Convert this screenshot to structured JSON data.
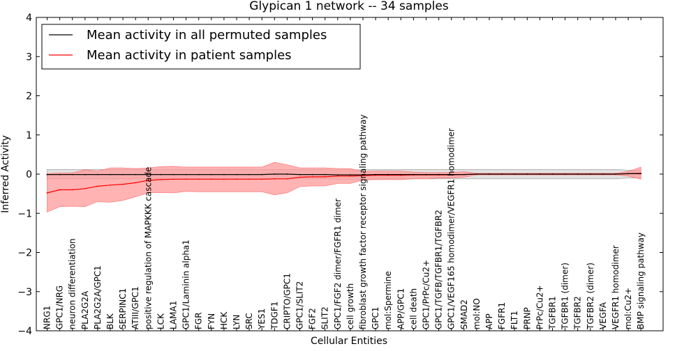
{
  "chart_data": {
    "type": "line",
    "title": "Glypican 1 network -- 34 samples",
    "xlabel": "Cellular Entities",
    "ylabel": "Inferred Activity",
    "ylim": [
      -4,
      4
    ],
    "yticks": [
      -4,
      -3,
      -2,
      -1,
      0,
      1,
      2,
      3,
      4
    ],
    "grid": false,
    "legend_position": "top-left",
    "categories": [
      "NRG1",
      "GPC1/NRG",
      "neuron differentiation",
      "PLA2G2A",
      "PLA2G2A/GPC1",
      "BLK",
      "SERPINC1",
      "ATIII/GPC1",
      "positive regulation of MAPKKK cascade",
      "LCK",
      "LAMA1",
      "GPC1/Laminin alpha1",
      "FGR",
      "FYN",
      "HCK",
      "LYN",
      "SRC",
      "YES1",
      "TDGF1",
      "CRIPTO/GPC1",
      "GPC1/SLIT2",
      "FGF2",
      "SLIT2",
      "GPC1/FGF2 dimer/FGFR1 dimer",
      "cell growth",
      "fibroblast growth factor receptor signaling pathway",
      "GPC1",
      "mol:Spermine",
      "APP/GPC1",
      "cell death",
      "GPC1/PrPc/Cu2+",
      "GPC1/TGFB/TGFBR1/TGFBR2",
      "GPC1/VEGF165 homodimer/VEGFR1 homodimer",
      "SMAD2",
      "mol:NO",
      "APP",
      "FGFR1",
      "FLT1",
      "PRNP",
      "PrPc/Cu2+",
      "TGFBR1",
      "TGFBR1 (dimer)",
      "TGFBR2",
      "TGFBR2 (dimer)",
      "VEGFA",
      "VEGFR1 homodimer",
      "mol:Cu2+",
      "BMP signaling pathway"
    ],
    "series": [
      {
        "name": "Mean activity in all permuted samples",
        "color": "#000000",
        "band_color": "#c8c8c8",
        "values": [
          -0.01,
          -0.01,
          -0.01,
          -0.01,
          -0.01,
          -0.01,
          -0.01,
          -0.01,
          -0.01,
          -0.01,
          -0.01,
          -0.01,
          -0.01,
          -0.01,
          -0.01,
          -0.01,
          -0.01,
          -0.01,
          0.0,
          0.0,
          -0.01,
          -0.01,
          -0.01,
          -0.02,
          -0.02,
          -0.02,
          -0.01,
          -0.01,
          -0.01,
          -0.01,
          -0.01,
          -0.01,
          -0.01,
          -0.01,
          0.0,
          0.0,
          0.0,
          0.0,
          0.0,
          0.0,
          0.0,
          0.0,
          0.0,
          0.0,
          0.0,
          0.0,
          0.01,
          0.01
        ],
        "band_lower": [
          -0.12,
          -0.12,
          -0.12,
          -0.12,
          -0.12,
          -0.12,
          -0.12,
          -0.12,
          -0.12,
          -0.12,
          -0.12,
          -0.12,
          -0.12,
          -0.12,
          -0.12,
          -0.12,
          -0.12,
          -0.12,
          -0.12,
          -0.12,
          -0.12,
          -0.12,
          -0.12,
          -0.13,
          -0.13,
          -0.13,
          -0.12,
          -0.12,
          -0.12,
          -0.12,
          -0.12,
          -0.12,
          -0.12,
          -0.12,
          -0.12,
          -0.12,
          -0.12,
          -0.12,
          -0.12,
          -0.12,
          -0.12,
          -0.12,
          -0.12,
          -0.12,
          -0.12,
          -0.12,
          -0.1,
          -0.1
        ],
        "band_upper": [
          0.12,
          0.12,
          0.12,
          0.12,
          0.12,
          0.12,
          0.12,
          0.12,
          0.12,
          0.12,
          0.12,
          0.12,
          0.12,
          0.12,
          0.12,
          0.12,
          0.12,
          0.12,
          0.12,
          0.12,
          0.12,
          0.12,
          0.12,
          0.11,
          0.11,
          0.11,
          0.12,
          0.12,
          0.12,
          0.12,
          0.12,
          0.12,
          0.12,
          0.12,
          0.12,
          0.12,
          0.12,
          0.12,
          0.12,
          0.12,
          0.12,
          0.12,
          0.12,
          0.12,
          0.12,
          0.12,
          0.1,
          0.1
        ]
      },
      {
        "name": "Mean activity in patient samples",
        "color": "#ff0000",
        "band_color": "#ff9a9a",
        "values": [
          -0.48,
          -0.4,
          -0.4,
          -0.37,
          -0.31,
          -0.28,
          -0.26,
          -0.22,
          -0.16,
          -0.14,
          -0.13,
          -0.13,
          -0.13,
          -0.13,
          -0.13,
          -0.13,
          -0.13,
          -0.13,
          -0.12,
          -0.12,
          -0.08,
          -0.07,
          -0.07,
          -0.05,
          -0.05,
          -0.04,
          -0.03,
          -0.03,
          -0.03,
          -0.02,
          -0.02,
          -0.02,
          -0.02,
          -0.01,
          0.0,
          0.0,
          0.0,
          0.0,
          0.0,
          0.0,
          0.0,
          0.0,
          0.0,
          0.0,
          0.0,
          0.0,
          0.01,
          0.02
        ],
        "band_lower": [
          -0.97,
          -0.83,
          -0.82,
          -0.83,
          -0.7,
          -0.72,
          -0.67,
          -0.58,
          -0.48,
          -0.47,
          -0.48,
          -0.44,
          -0.45,
          -0.45,
          -0.45,
          -0.45,
          -0.45,
          -0.45,
          -0.53,
          -0.48,
          -0.32,
          -0.3,
          -0.3,
          -0.24,
          -0.24,
          -0.15,
          -0.14,
          -0.14,
          -0.14,
          -0.12,
          -0.12,
          -0.1,
          -0.1,
          -0.08,
          -0.02,
          -0.02,
          -0.02,
          -0.02,
          -0.02,
          -0.02,
          -0.02,
          -0.02,
          -0.02,
          -0.02,
          -0.02,
          -0.02,
          -0.05,
          -0.13
        ],
        "band_upper": [
          0.01,
          0.03,
          0.03,
          0.11,
          0.08,
          0.16,
          0.16,
          0.14,
          0.16,
          0.19,
          0.2,
          0.18,
          0.18,
          0.18,
          0.18,
          0.18,
          0.18,
          0.18,
          0.3,
          0.24,
          0.16,
          0.16,
          0.16,
          0.14,
          0.14,
          0.07,
          0.08,
          0.08,
          0.08,
          0.05,
          0.04,
          0.04,
          0.04,
          0.06,
          0.02,
          0.02,
          0.02,
          0.02,
          0.02,
          0.02,
          0.02,
          0.02,
          0.02,
          0.02,
          0.02,
          0.02,
          0.07,
          0.18
        ]
      }
    ]
  }
}
